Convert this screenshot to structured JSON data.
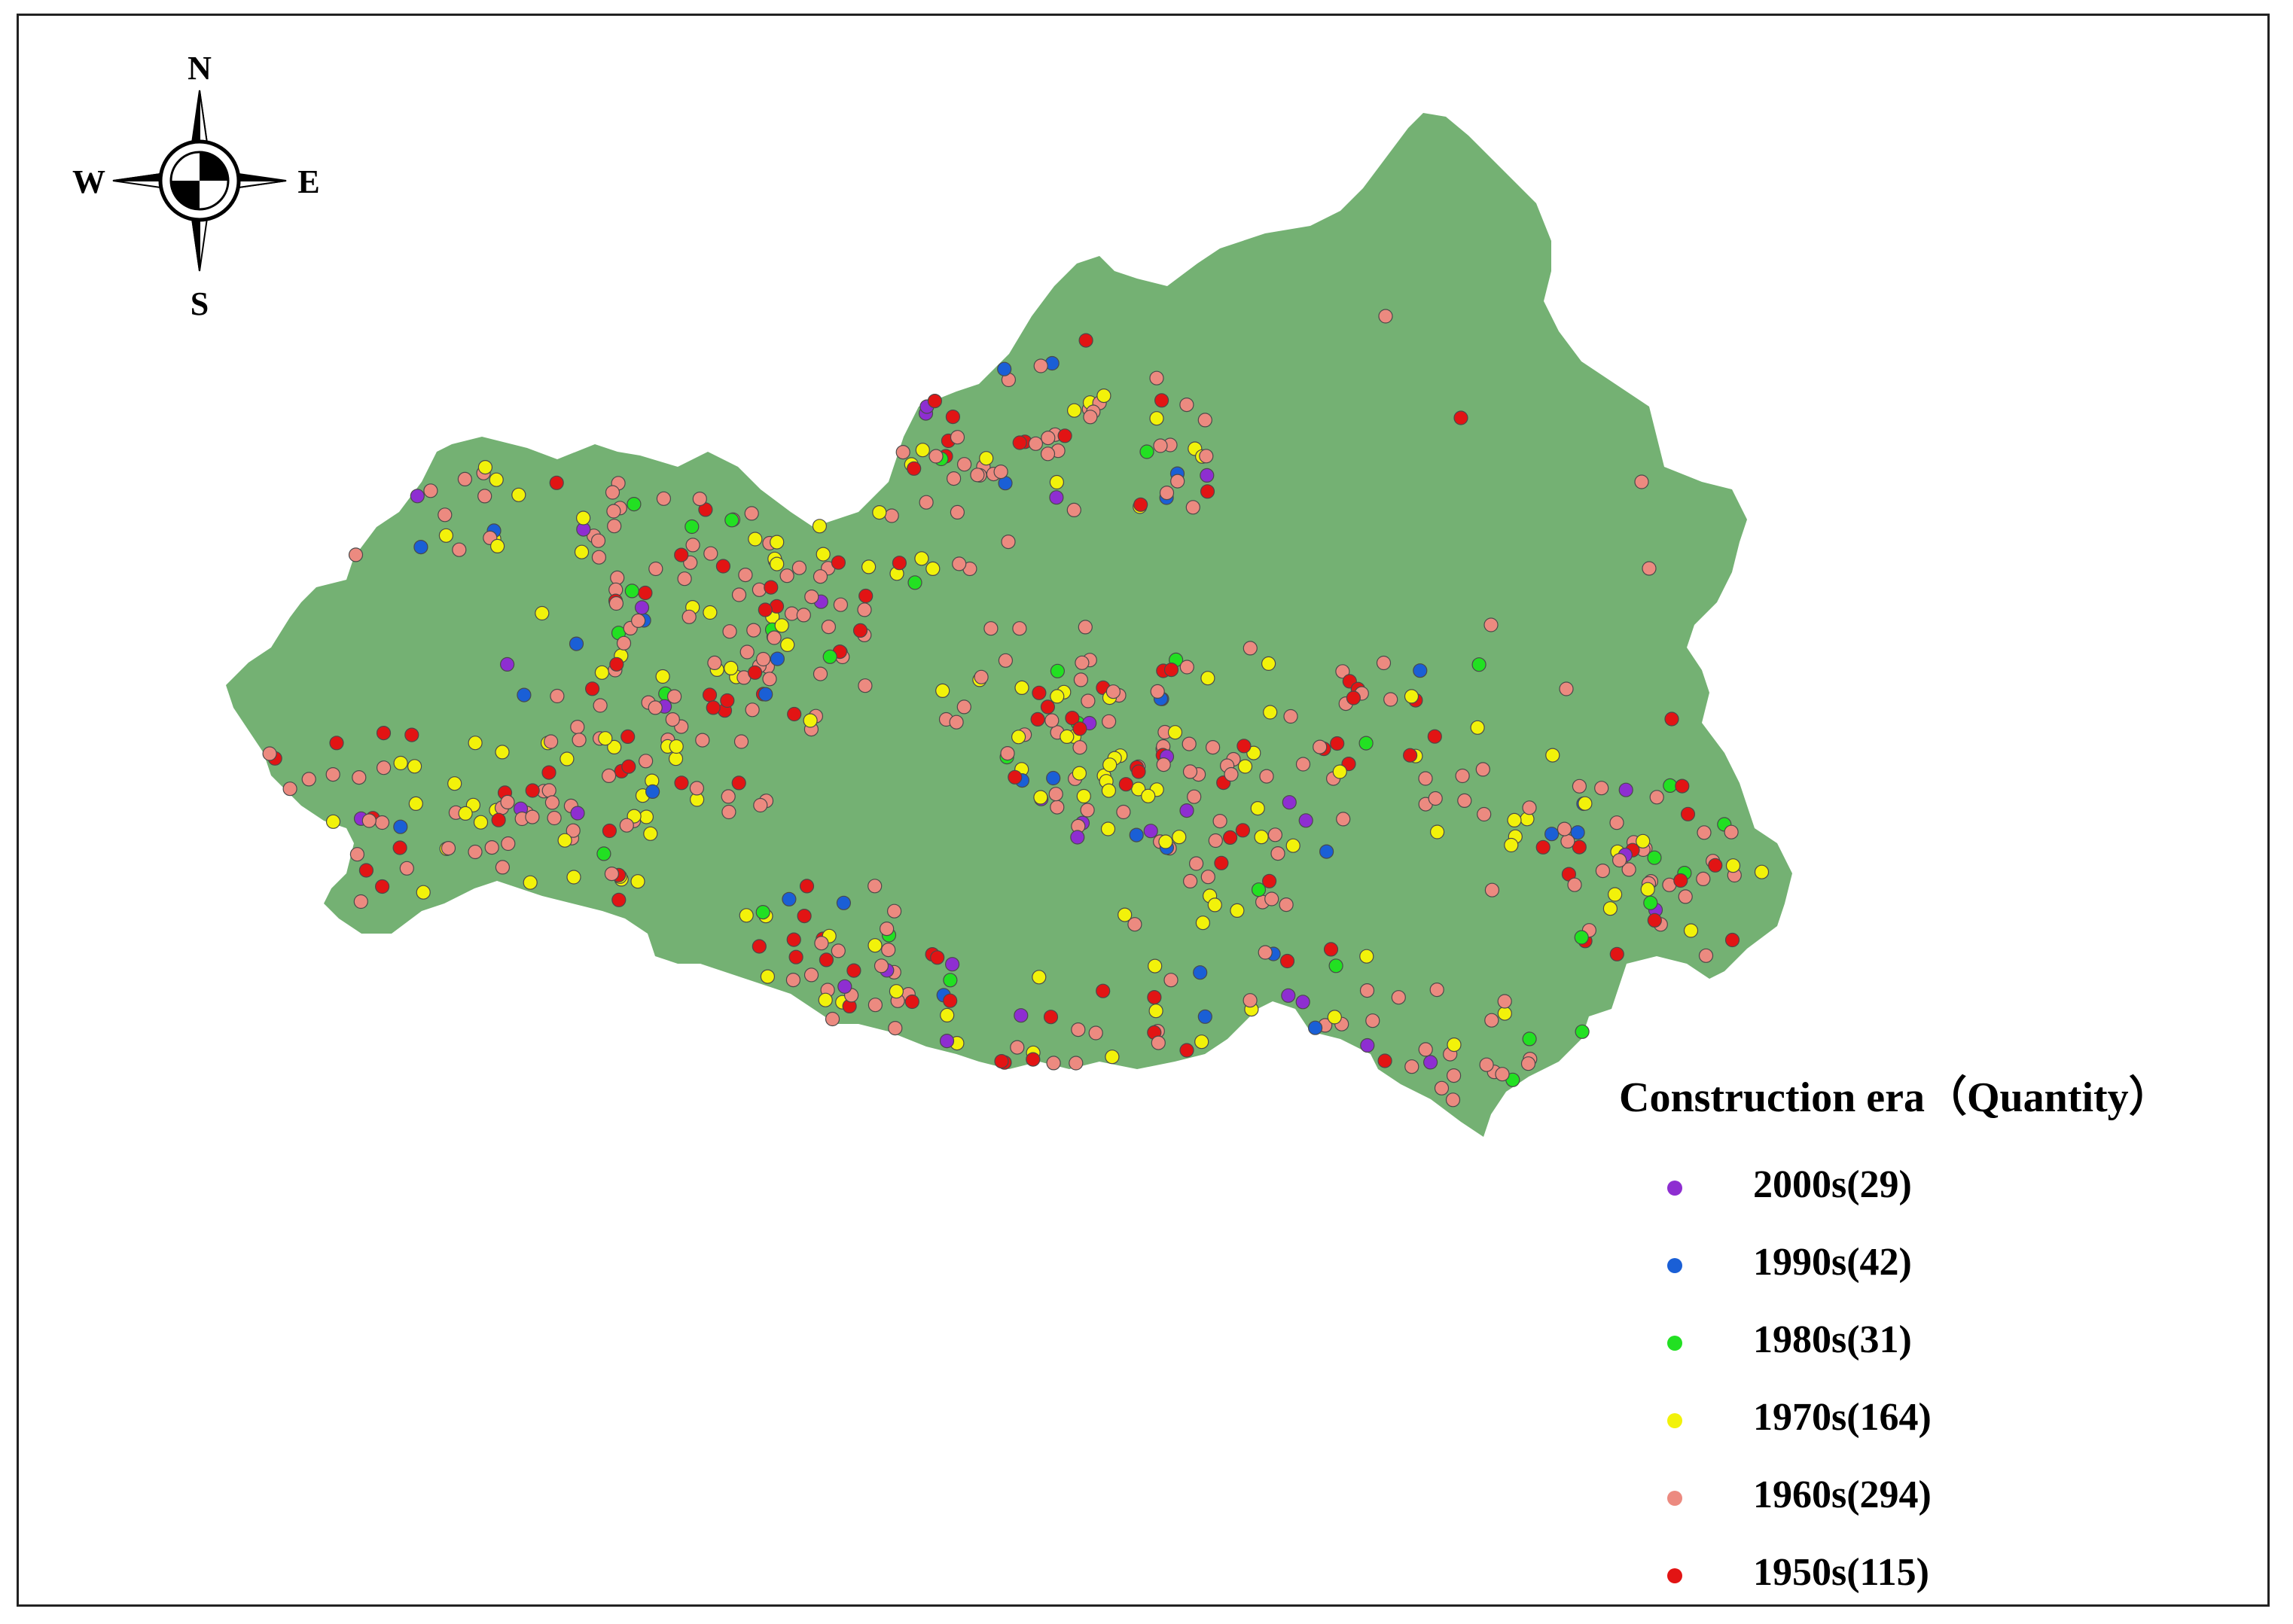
{
  "compass": {
    "north": "N",
    "south": "S",
    "east": "E",
    "west": "W",
    "icon": "compass-rose-icon"
  },
  "colors": {
    "basin": "#74b173",
    "era_2000s": "#8e2ed1",
    "era_1990s": "#1a5fd6",
    "era_1980s": "#22e022",
    "era_1970s": "#f2f20a",
    "era_1960s": "#ec8a80",
    "era_1950s": "#e21414"
  },
  "legend": {
    "title": "Construction era（Quantity）",
    "items": [
      {
        "label": "2000s(29)",
        "color": "#8e2ed1"
      },
      {
        "label": "1990s(42)",
        "color": "#1a5fd6"
      },
      {
        "label": "1980s(31)",
        "color": "#22e022"
      },
      {
        "label": "1970s(164)",
        "color": "#f2f20a"
      },
      {
        "label": "1960s(294)",
        "color": "#ec8a80"
      },
      {
        "label": "1950s(115)",
        "color": "#e21414"
      }
    ]
  }
}
